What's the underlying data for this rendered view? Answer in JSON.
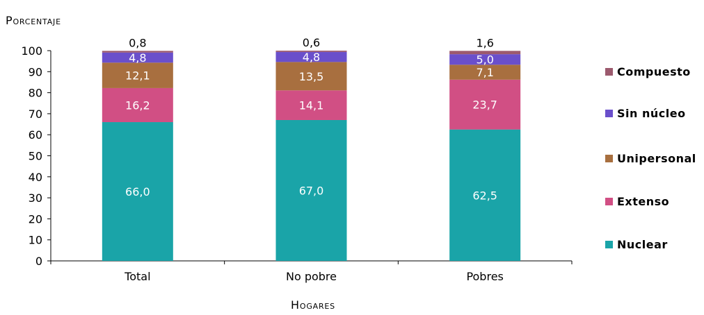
{
  "chart_data": {
    "type": "bar",
    "stacked": true,
    "categories": [
      "Total",
      "No pobre",
      "Pobres"
    ],
    "series": [
      {
        "name": "Nuclear",
        "values": [
          66.0,
          67.0,
          62.5
        ],
        "labels": [
          "66,0",
          "67,0",
          "62,5"
        ],
        "color": "#1aa4a8"
      },
      {
        "name": "Extenso",
        "values": [
          16.2,
          14.1,
          23.7
        ],
        "labels": [
          "16,2",
          "14,1",
          "23,7"
        ],
        "color": "#d14f84"
      },
      {
        "name": "Unipersonal",
        "values": [
          12.1,
          13.5,
          7.1
        ],
        "labels": [
          "12,1",
          "13,5",
          "7,1"
        ],
        "color": "#a86f3f"
      },
      {
        "name": "Sin núcleo",
        "values": [
          4.8,
          4.8,
          5.0
        ],
        "labels": [
          "4,8",
          "4,8",
          "5,0"
        ],
        "color": "#6a4fcb"
      },
      {
        "name": "Compuesto",
        "values": [
          0.8,
          0.6,
          1.6
        ],
        "labels": [
          "0,8",
          "0,6",
          "1,6"
        ],
        "color": "#9c5a6e"
      }
    ],
    "ylabel": "Porcentaje",
    "xlabel": "Hogares",
    "ylim": [
      0,
      100
    ],
    "yticks": [
      0,
      10,
      20,
      30,
      40,
      50,
      60,
      70,
      80,
      90,
      100
    ],
    "grid": false,
    "legend_position": "right"
  }
}
